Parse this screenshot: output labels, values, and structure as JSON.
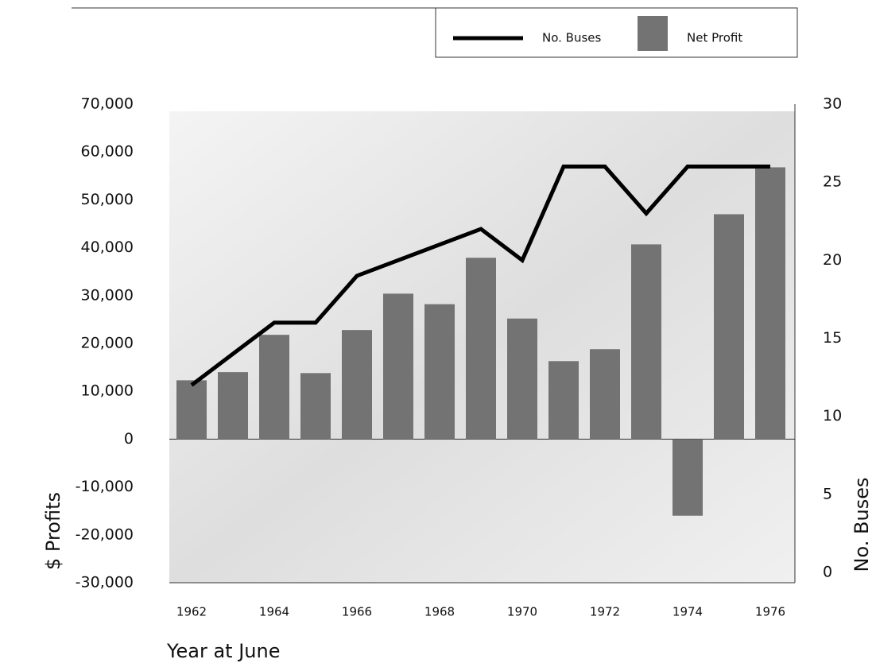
{
  "chart_data": {
    "type": "bar-line",
    "x_label": "Year at June",
    "y_label": "$ Profits",
    "y2_label": "No. Buses",
    "categories": [
      "1962",
      null,
      "1964",
      null,
      "1966",
      null,
      "1968",
      null,
      "1970",
      null,
      "1972",
      null,
      "1974",
      null,
      "1976"
    ],
    "series": [
      {
        "name": "Net Profit",
        "type": "bar",
        "color": "#737373",
        "values": [
          12300,
          14000,
          21800,
          13800,
          22800,
          30400,
          28200,
          37900,
          25200,
          16300,
          18800,
          40700,
          -16000,
          47000,
          56800
        ]
      },
      {
        "name": "No. Buses",
        "type": "line",
        "axis": "y2",
        "color": "#000000",
        "values": [
          12,
          14,
          16,
          16,
          19,
          20,
          21,
          22,
          20,
          26,
          26,
          23,
          26,
          26,
          26
        ]
      }
    ],
    "ylim": [
      -30000,
      70000
    ],
    "yticks": [
      {
        "value": -30000,
        "label": "-30,000"
      },
      {
        "value": -20000,
        "label": "-20,000"
      },
      {
        "value": -10000,
        "label": "-10,000"
      },
      0,
      {
        "value": 10000,
        "label": "10,000"
      },
      {
        "value": 20000,
        "label": "20,000"
      },
      {
        "value": 30000,
        "label": "30,000"
      },
      {
        "value": 40000,
        "label": "40,000"
      },
      {
        "value": 50000,
        "label": "50,000"
      },
      {
        "value": 60000,
        "label": "60,000"
      },
      {
        "value": 70000,
        "label": "70,000"
      }
    ],
    "y2lim": [
      0,
      30
    ],
    "y2ticks": [
      0,
      5,
      10,
      15,
      20,
      25,
      30
    ],
    "legend": "top-right"
  }
}
